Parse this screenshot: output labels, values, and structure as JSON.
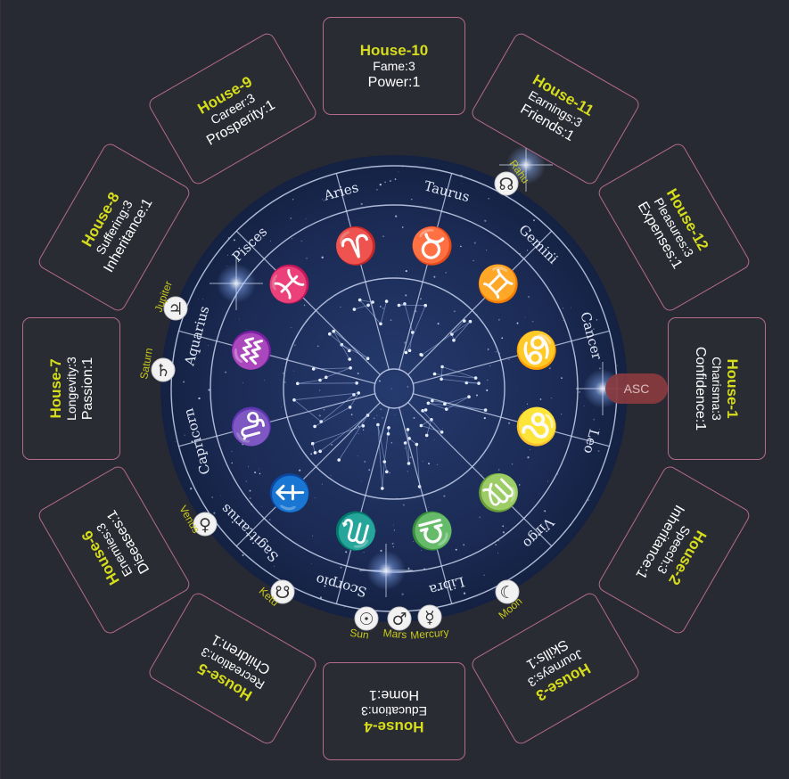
{
  "houses": [
    {
      "id": 1,
      "title": "House-1",
      "line1": "Charisma:3",
      "line2": "Confidence:1"
    },
    {
      "id": 2,
      "title": "House-2",
      "line1": "Speech:3",
      "line2": "Inheritance:1"
    },
    {
      "id": 3,
      "title": "House-3",
      "line1": "Journeys:3",
      "line2": "Skills:1"
    },
    {
      "id": 4,
      "title": "House-4",
      "line1": "Education:3",
      "line2": "Home:1"
    },
    {
      "id": 5,
      "title": "House-5",
      "line1": "Recreation:3",
      "line2": "Children:1"
    },
    {
      "id": 6,
      "title": "House-6",
      "line1": "Enemies:3",
      "line2": "Diseases:1"
    },
    {
      "id": 7,
      "title": "House-7",
      "line1": "Longevity:3",
      "line2": "Passion:1"
    },
    {
      "id": 8,
      "title": "House-8",
      "line1": "Suffering:3",
      "line2": "Inheritance:1"
    },
    {
      "id": 9,
      "title": "House-9",
      "line1": "Career:3",
      "line2": "Prosperity:1"
    },
    {
      "id": 10,
      "title": "House-10",
      "line1": "Fame:3",
      "line2": "Power:1"
    },
    {
      "id": 11,
      "title": "House-11",
      "line1": "Earnings:3",
      "line2": "Friends:1"
    },
    {
      "id": 12,
      "title": "House-12",
      "line1": "Pleasures:3",
      "line2": "Expenses:1"
    }
  ],
  "zodiac": [
    {
      "name": "Aries",
      "glyph": "♈"
    },
    {
      "name": "Taurus",
      "glyph": "♉"
    },
    {
      "name": "Gemini",
      "glyph": "♊"
    },
    {
      "name": "Cancer",
      "glyph": "♋"
    },
    {
      "name": "Leo",
      "glyph": "♌"
    },
    {
      "name": "Virgo",
      "glyph": "♍"
    },
    {
      "name": "Libra",
      "glyph": "♎"
    },
    {
      "name": "Scorpio",
      "glyph": "♏"
    },
    {
      "name": "Sagittarius",
      "glyph": "♐"
    },
    {
      "name": "Capricorn",
      "glyph": "♑"
    },
    {
      "name": "Aquarius",
      "glyph": "♒"
    },
    {
      "name": "Pisces",
      "glyph": "♓"
    }
  ],
  "planets": [
    {
      "name": "Rahu",
      "glyph": "☊"
    },
    {
      "name": "Jupiter",
      "glyph": "♃"
    },
    {
      "name": "Saturn",
      "glyph": "♄"
    },
    {
      "name": "Venus",
      "glyph": "♀"
    },
    {
      "name": "Ketu",
      "glyph": "☋"
    },
    {
      "name": "Sun",
      "glyph": "☉"
    },
    {
      "name": "Mars",
      "glyph": "♂"
    },
    {
      "name": "Mercury",
      "glyph": "☿"
    },
    {
      "name": "Moon",
      "glyph": "☾"
    }
  ],
  "ascendant": {
    "label": "ASC"
  },
  "colors": {
    "background": "#272a33",
    "house_border": "#b56a8c",
    "house_title": "#d6dd1a",
    "wheel": "#1b2b52",
    "planet_label": "#c8c81a",
    "asc": "#8a3b40"
  }
}
